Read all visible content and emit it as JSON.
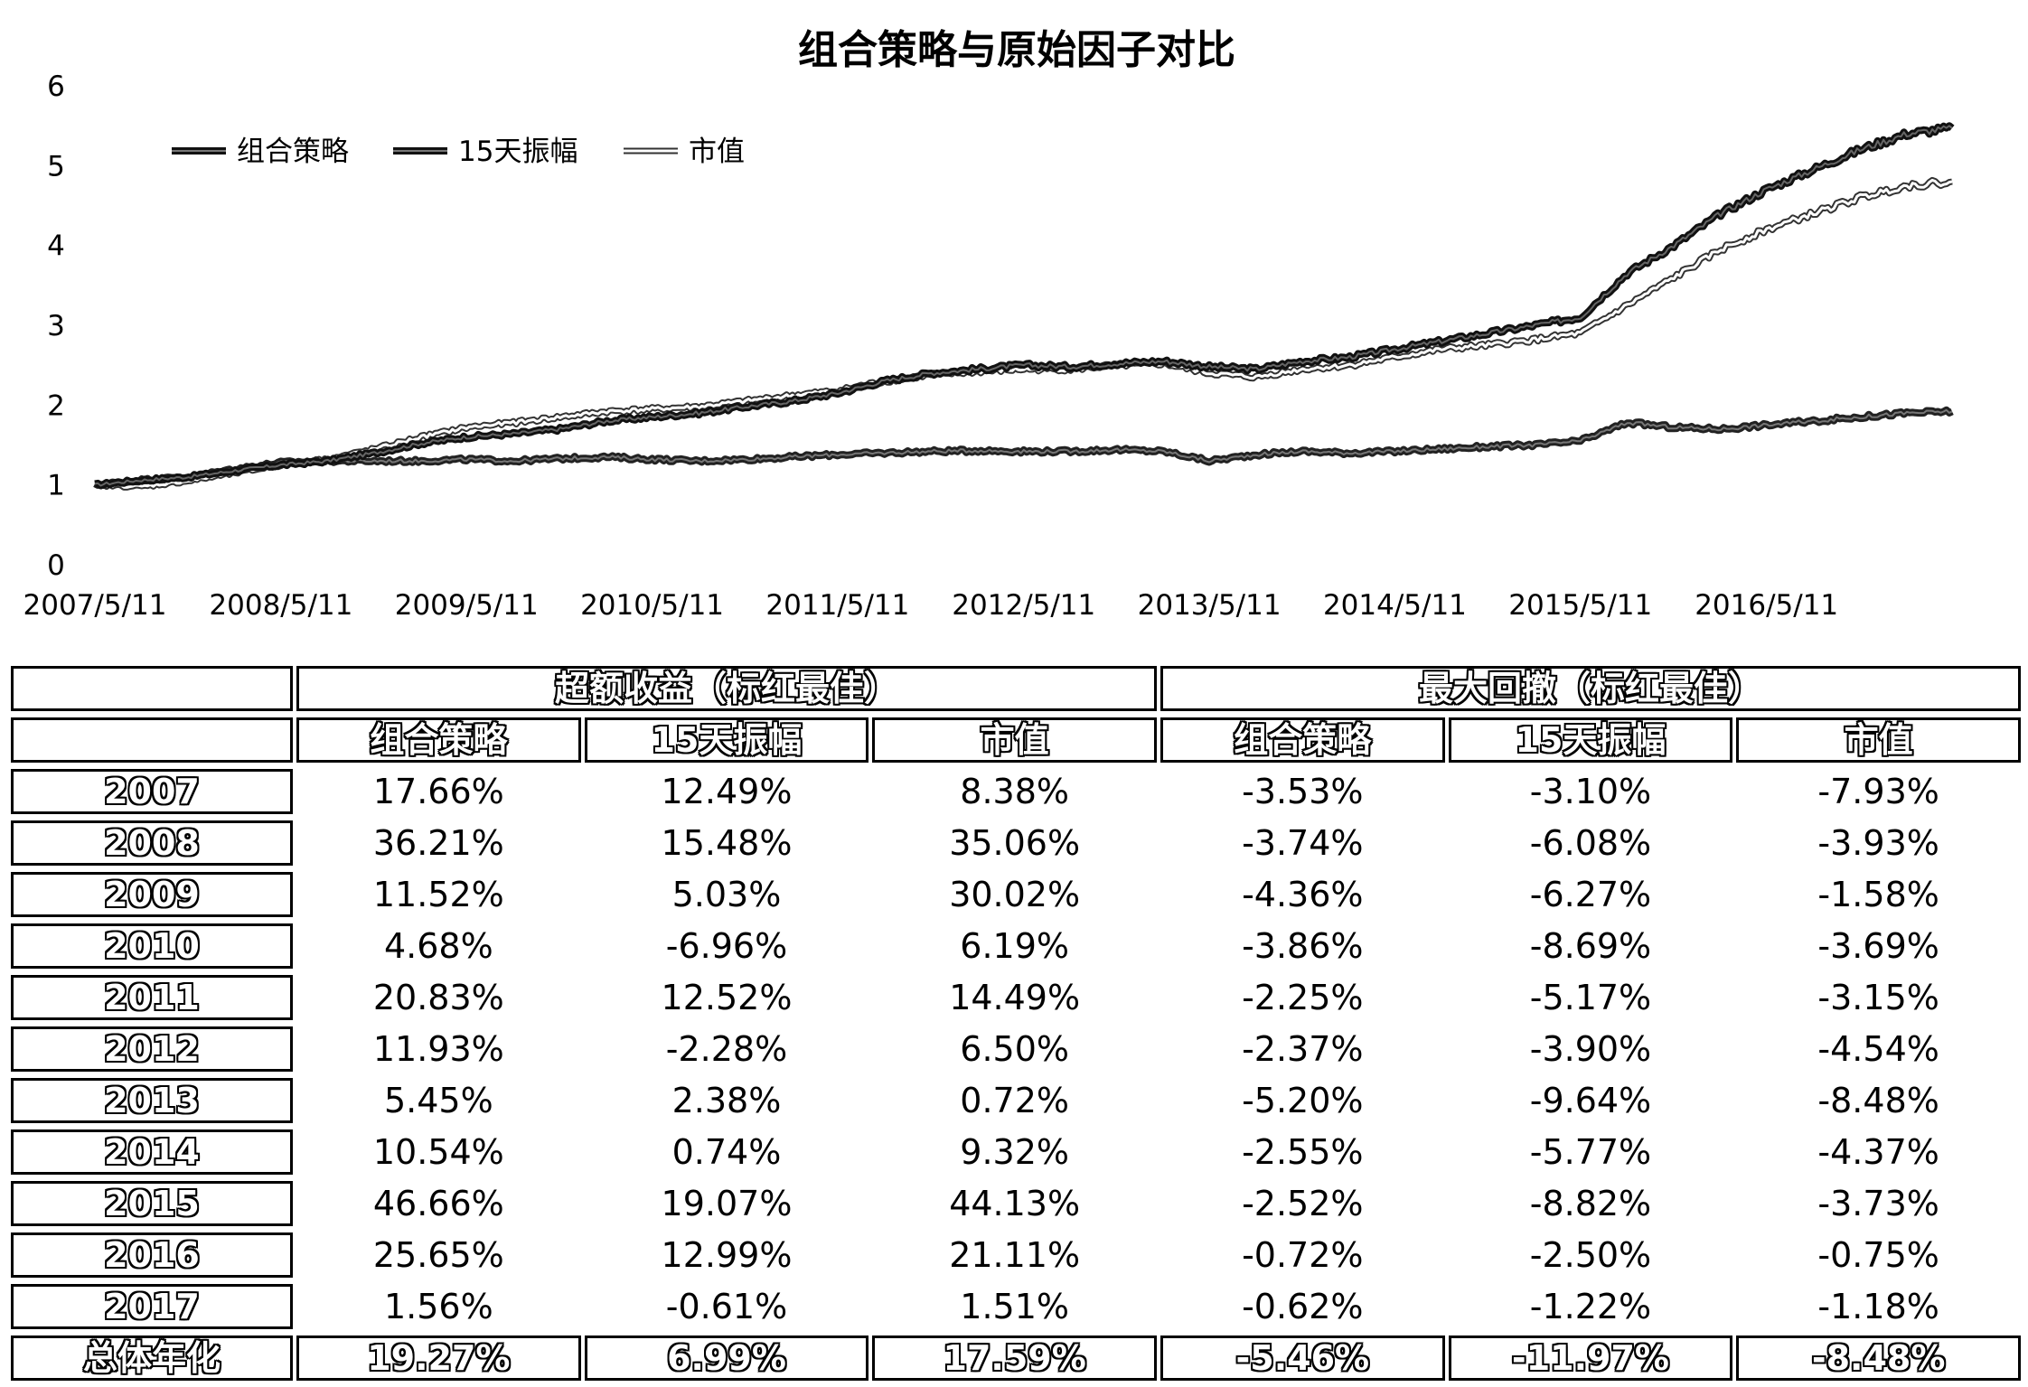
{
  "chart_data": {
    "type": "line",
    "title": "组合策略与原始因子对比",
    "xlabel": "",
    "ylabel": "",
    "ylim": [
      0,
      6
    ],
    "yticks": [
      0,
      1,
      2,
      3,
      4,
      5,
      6
    ],
    "xticks": [
      "2007/5/11",
      "2008/5/11",
      "2009/5/11",
      "2010/5/11",
      "2011/5/11",
      "2012/5/11",
      "2013/5/11",
      "2014/5/11",
      "2015/5/11",
      "2016/5/11"
    ],
    "xlim": [
      "2007/5/11",
      "2017/5/11"
    ],
    "grid": false,
    "legend_position": "top-left",
    "series": [
      {
        "name": "组合策略",
        "color": "#1a1a1a",
        "style": "thick-dark",
        "points": [
          [
            "2007/5/11",
            1.0
          ],
          [
            "2007/8/11",
            1.06
          ],
          [
            "2007/11/11",
            1.1
          ],
          [
            "2008/2/11",
            1.18
          ],
          [
            "2008/5/11",
            1.25
          ],
          [
            "2008/8/11",
            1.3
          ],
          [
            "2008/11/11",
            1.4
          ],
          [
            "2009/2/11",
            1.52
          ],
          [
            "2009/5/11",
            1.6
          ],
          [
            "2009/8/11",
            1.64
          ],
          [
            "2009/11/11",
            1.7
          ],
          [
            "2010/2/11",
            1.8
          ],
          [
            "2010/5/11",
            1.85
          ],
          [
            "2010/8/11",
            1.9
          ],
          [
            "2010/11/11",
            1.98
          ],
          [
            "2011/2/11",
            2.05
          ],
          [
            "2011/5/11",
            2.15
          ],
          [
            "2011/8/11",
            2.3
          ],
          [
            "2011/11/11",
            2.4
          ],
          [
            "2012/2/11",
            2.45
          ],
          [
            "2012/5/11",
            2.5
          ],
          [
            "2012/8/11",
            2.48
          ],
          [
            "2012/11/11",
            2.52
          ],
          [
            "2013/2/11",
            2.55
          ],
          [
            "2013/5/11",
            2.48
          ],
          [
            "2013/8/11",
            2.45
          ],
          [
            "2013/11/11",
            2.55
          ],
          [
            "2014/2/11",
            2.6
          ],
          [
            "2014/5/11",
            2.7
          ],
          [
            "2014/8/11",
            2.8
          ],
          [
            "2014/11/11",
            2.9
          ],
          [
            "2015/2/11",
            3.0
          ],
          [
            "2015/5/11",
            3.1
          ],
          [
            "2015/8/11",
            3.65
          ],
          [
            "2015/11/11",
            4.0
          ],
          [
            "2016/2/11",
            4.4
          ],
          [
            "2016/5/11",
            4.7
          ],
          [
            "2016/8/11",
            4.95
          ],
          [
            "2016/11/11",
            5.2
          ],
          [
            "2017/2/11",
            5.4
          ],
          [
            "2017/5/11",
            5.47
          ]
        ]
      },
      {
        "name": "15天振幅",
        "color": "#333333",
        "style": "dark-double",
        "points": [
          [
            "2007/5/11",
            1.0
          ],
          [
            "2007/8/11",
            1.06
          ],
          [
            "2007/11/11",
            1.1
          ],
          [
            "2008/2/11",
            1.2
          ],
          [
            "2008/5/11",
            1.28
          ],
          [
            "2008/8/11",
            1.3
          ],
          [
            "2008/11/11",
            1.3
          ],
          [
            "2009/2/11",
            1.3
          ],
          [
            "2009/5/11",
            1.32
          ],
          [
            "2009/8/11",
            1.3
          ],
          [
            "2009/11/11",
            1.33
          ],
          [
            "2010/2/11",
            1.35
          ],
          [
            "2010/5/11",
            1.32
          ],
          [
            "2010/8/11",
            1.3
          ],
          [
            "2010/11/11",
            1.32
          ],
          [
            "2011/2/11",
            1.35
          ],
          [
            "2011/5/11",
            1.38
          ],
          [
            "2011/8/11",
            1.4
          ],
          [
            "2011/11/11",
            1.42
          ],
          [
            "2012/2/11",
            1.43
          ],
          [
            "2012/5/11",
            1.42
          ],
          [
            "2012/8/11",
            1.42
          ],
          [
            "2012/11/11",
            1.44
          ],
          [
            "2013/2/11",
            1.42
          ],
          [
            "2013/5/11",
            1.3
          ],
          [
            "2013/8/11",
            1.38
          ],
          [
            "2013/11/11",
            1.42
          ],
          [
            "2014/2/11",
            1.4
          ],
          [
            "2014/5/11",
            1.42
          ],
          [
            "2014/8/11",
            1.45
          ],
          [
            "2014/11/11",
            1.48
          ],
          [
            "2015/2/11",
            1.5
          ],
          [
            "2015/5/11",
            1.55
          ],
          [
            "2015/8/11",
            1.78
          ],
          [
            "2015/11/11",
            1.72
          ],
          [
            "2016/2/11",
            1.7
          ],
          [
            "2016/5/11",
            1.75
          ],
          [
            "2016/8/11",
            1.8
          ],
          [
            "2016/11/11",
            1.85
          ],
          [
            "2017/2/11",
            1.9
          ],
          [
            "2017/5/11",
            1.92
          ]
        ]
      },
      {
        "name": "市值",
        "color": "#555555",
        "style": "hollow-outline",
        "points": [
          [
            "2007/5/11",
            1.0
          ],
          [
            "2007/8/11",
            0.98
          ],
          [
            "2007/11/11",
            1.05
          ],
          [
            "2008/2/11",
            1.15
          ],
          [
            "2008/5/11",
            1.25
          ],
          [
            "2008/8/11",
            1.32
          ],
          [
            "2008/11/11",
            1.45
          ],
          [
            "2009/2/11",
            1.6
          ],
          [
            "2009/5/11",
            1.72
          ],
          [
            "2009/8/11",
            1.78
          ],
          [
            "2009/11/11",
            1.85
          ],
          [
            "2010/2/11",
            1.92
          ],
          [
            "2010/5/11",
            1.95
          ],
          [
            "2010/8/11",
            1.98
          ],
          [
            "2010/11/11",
            2.05
          ],
          [
            "2011/2/11",
            2.12
          ],
          [
            "2011/5/11",
            2.18
          ],
          [
            "2011/8/11",
            2.3
          ],
          [
            "2011/11/11",
            2.38
          ],
          [
            "2012/2/11",
            2.42
          ],
          [
            "2012/5/11",
            2.45
          ],
          [
            "2012/8/11",
            2.45
          ],
          [
            "2012/11/11",
            2.5
          ],
          [
            "2013/2/11",
            2.52
          ],
          [
            "2013/5/11",
            2.4
          ],
          [
            "2013/8/11",
            2.35
          ],
          [
            "2013/11/11",
            2.45
          ],
          [
            "2014/2/11",
            2.5
          ],
          [
            "2014/5/11",
            2.6
          ],
          [
            "2014/8/11",
            2.7
          ],
          [
            "2014/11/11",
            2.75
          ],
          [
            "2015/2/11",
            2.82
          ],
          [
            "2015/5/11",
            2.9
          ],
          [
            "2015/8/11",
            3.25
          ],
          [
            "2015/11/11",
            3.6
          ],
          [
            "2016/2/11",
            3.95
          ],
          [
            "2016/5/11",
            4.2
          ],
          [
            "2016/8/11",
            4.4
          ],
          [
            "2016/11/11",
            4.6
          ],
          [
            "2017/2/11",
            4.75
          ],
          [
            "2017/5/11",
            4.8
          ]
        ]
      }
    ]
  },
  "table": {
    "group_headers": [
      "超额收益（标红最佳）",
      "最大回撤（标红最佳）"
    ],
    "sub_headers": [
      "组合策略",
      "15天振幅",
      "市值",
      "组合策略",
      "15天振幅",
      "市值"
    ],
    "rows": [
      {
        "year": "2007",
        "values": [
          "17.66%",
          "12.49%",
          "8.38%",
          "-3.53%",
          "-3.10%",
          "-7.93%"
        ]
      },
      {
        "year": "2008",
        "values": [
          "36.21%",
          "15.48%",
          "35.06%",
          "-3.74%",
          "-6.08%",
          "-3.93%"
        ]
      },
      {
        "year": "2009",
        "values": [
          "11.52%",
          "5.03%",
          "30.02%",
          "-4.36%",
          "-6.27%",
          "-1.58%"
        ]
      },
      {
        "year": "2010",
        "values": [
          "4.68%",
          "-6.96%",
          "6.19%",
          "-3.86%",
          "-8.69%",
          "-3.69%"
        ]
      },
      {
        "year": "2011",
        "values": [
          "20.83%",
          "12.52%",
          "14.49%",
          "-2.25%",
          "-5.17%",
          "-3.15%"
        ]
      },
      {
        "year": "2012",
        "values": [
          "11.93%",
          "-2.28%",
          "6.50%",
          "-2.37%",
          "-3.90%",
          "-4.54%"
        ]
      },
      {
        "year": "2013",
        "values": [
          "5.45%",
          "2.38%",
          "0.72%",
          "-5.20%",
          "-9.64%",
          "-8.48%"
        ]
      },
      {
        "year": "2014",
        "values": [
          "10.54%",
          "0.74%",
          "9.32%",
          "-2.55%",
          "-5.77%",
          "-4.37%"
        ]
      },
      {
        "year": "2015",
        "values": [
          "46.66%",
          "19.07%",
          "44.13%",
          "-2.52%",
          "-8.82%",
          "-3.73%"
        ]
      },
      {
        "year": "2016",
        "values": [
          "25.65%",
          "12.99%",
          "21.11%",
          "-0.72%",
          "-2.50%",
          "-0.75%"
        ]
      },
      {
        "year": "2017",
        "values": [
          "1.56%",
          "-0.61%",
          "1.51%",
          "-0.62%",
          "-1.22%",
          "-1.18%"
        ]
      }
    ],
    "summary": {
      "label": "总体年化",
      "values": [
        "19.27%",
        "6.99%",
        "17.59%",
        "-5.46%",
        "-11.97%",
        "-8.48%"
      ]
    }
  }
}
